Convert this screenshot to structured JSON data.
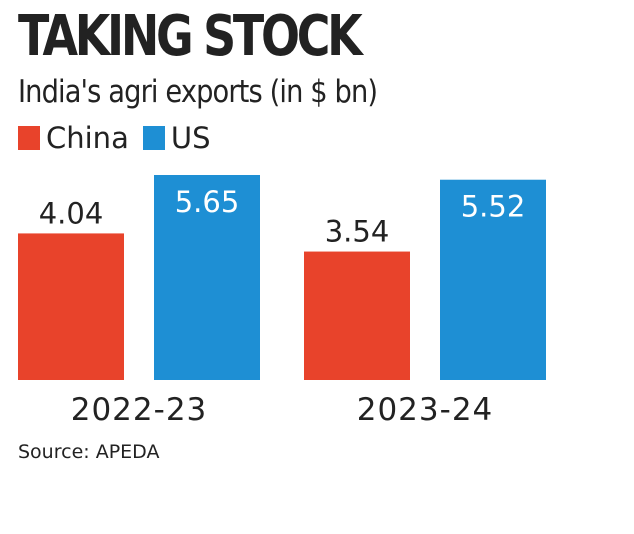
{
  "chart_data": {
    "type": "bar",
    "title": "TAKING STOCK",
    "subtitle": "India's agri exports (in $ bn)",
    "categories": [
      "2022-23",
      "2023-24"
    ],
    "series": [
      {
        "name": "China",
        "values": [
          4.04,
          3.54
        ],
        "color": "#e8432b"
      },
      {
        "name": "US",
        "values": [
          5.65,
          5.52
        ],
        "color": "#1e8fd4"
      }
    ],
    "value_labels": [
      [
        "4.04",
        "3.54"
      ],
      [
        "5.65",
        "5.52"
      ]
    ],
    "ylim": [
      0,
      5.65
    ],
    "grid": false,
    "legend": "top-left",
    "source": "Source: APEDA"
  }
}
